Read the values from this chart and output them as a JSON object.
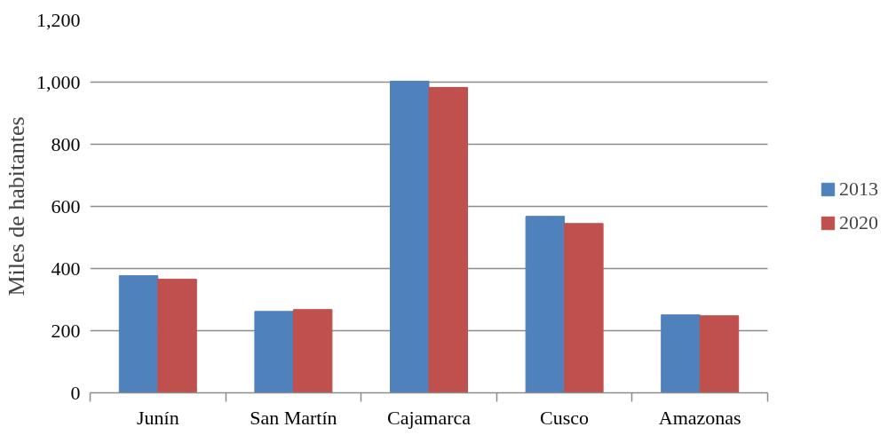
{
  "chart_data": {
    "type": "bar",
    "ylabel": "Miles de habitantes",
    "categories": [
      "Junín",
      "San Martín",
      "Cajamarca",
      "Cusco",
      "Amazonas"
    ],
    "series": [
      {
        "name": "2013",
        "color": "#4f81bd",
        "values": [
          377,
          262,
          1003,
          568,
          251
        ]
      },
      {
        "name": "2020",
        "color": "#c0504d",
        "values": [
          366,
          268,
          983,
          545,
          248
        ]
      }
    ],
    "ylim": [
      0,
      1200
    ],
    "yticks": [
      0,
      {
        "value": 200,
        "label": "200"
      },
      {
        "value": 400,
        "label": "400"
      },
      {
        "value": 600,
        "label": "600"
      },
      {
        "value": 800,
        "label": "800"
      },
      {
        "value": 1000,
        "label": "1,000"
      },
      {
        "value": 1200,
        "label": "1,200"
      }
    ],
    "grid": "y",
    "legend": "right"
  }
}
